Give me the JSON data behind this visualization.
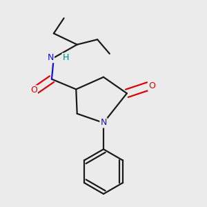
{
  "background_color": "#ebebeb",
  "bond_color": "#1a1a1a",
  "atom_colors": {
    "N": "#1010e0",
    "O": "#e00000",
    "H": "#008080",
    "C": "#1a1a1a"
  },
  "figsize": [
    3.0,
    3.0
  ],
  "dpi": 100
}
